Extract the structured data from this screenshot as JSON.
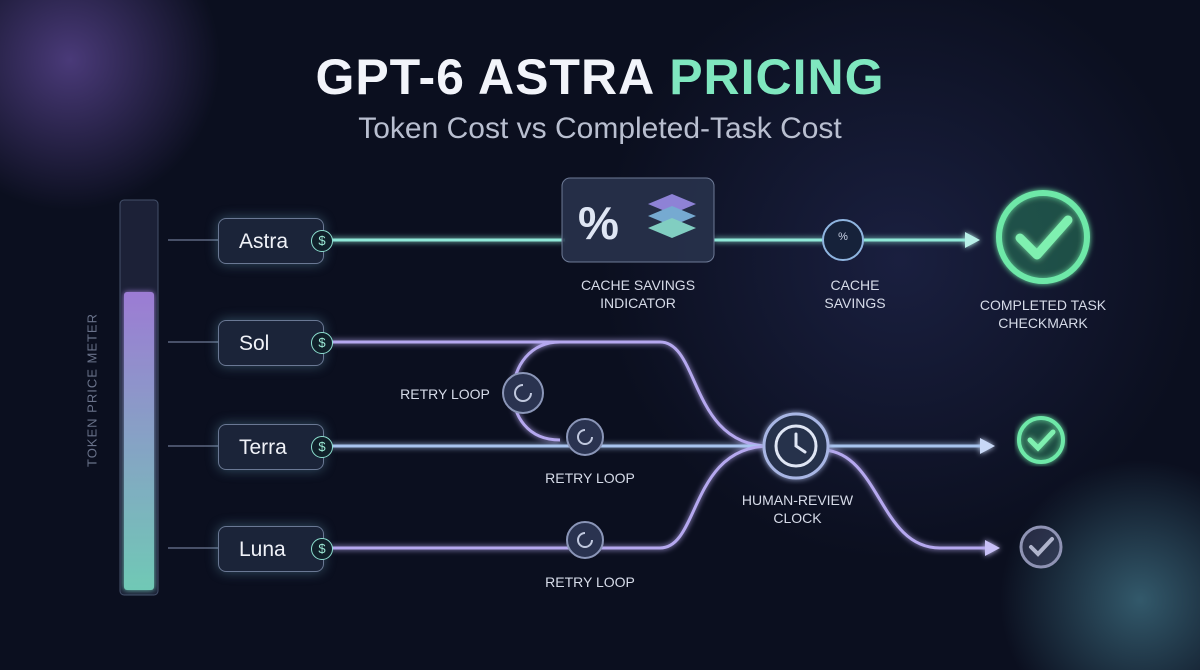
{
  "header": {
    "title_main": "GPT-6 ASTRA",
    "title_accent": "PRICING",
    "subtitle": "Token Cost vs Completed-Task Cost"
  },
  "meter": {
    "label": "TOKEN PRICE METER"
  },
  "icons": {
    "currency": "$",
    "percent": "%"
  },
  "tiers": [
    {
      "label": "Astra"
    },
    {
      "label": "Sol"
    },
    {
      "label": "Terra"
    },
    {
      "label": "Luna"
    }
  ],
  "annotations": {
    "cache_indicator": "CACHE SAVINGS INDICATOR",
    "cache_savings": "CACHE SAVINGS",
    "completed": "COMPLETED TASK CHECKMARK",
    "retry_loops": [
      "RETRY LOOP",
      "RETRY LOOP",
      "RETRY LOOP"
    ],
    "review_clock": "HUMAN-REVIEW CLOCK"
  }
}
